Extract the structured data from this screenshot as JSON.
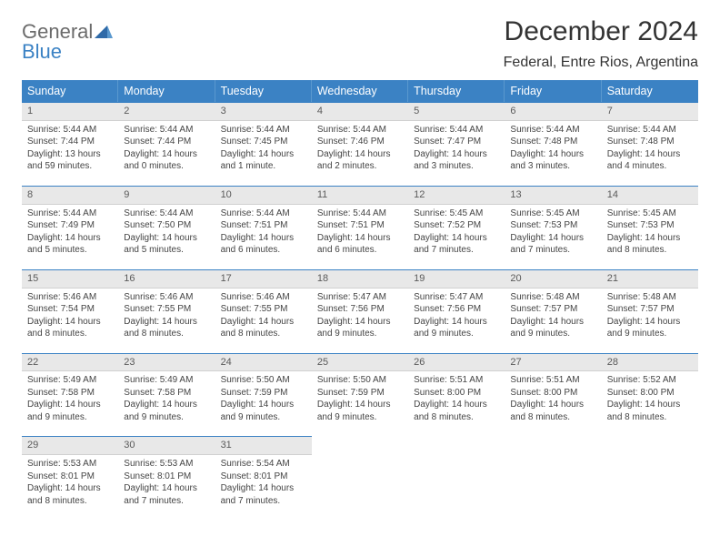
{
  "logo": {
    "general": "General",
    "blue": "Blue"
  },
  "title": "December 2024",
  "location": "Federal, Entre Rios, Argentina",
  "day_headers": [
    "Sunday",
    "Monday",
    "Tuesday",
    "Wednesday",
    "Thursday",
    "Friday",
    "Saturday"
  ],
  "header_bg": "#3b82c4",
  "header_border": "#5a98ce",
  "daynum_bg": "#e8e8e8",
  "daynum_border_top": "#3b82c4",
  "weeks": [
    [
      {
        "n": "1",
        "sunrise": "Sunrise: 5:44 AM",
        "sunset": "Sunset: 7:44 PM",
        "d1": "Daylight: 13 hours",
        "d2": "and 59 minutes."
      },
      {
        "n": "2",
        "sunrise": "Sunrise: 5:44 AM",
        "sunset": "Sunset: 7:44 PM",
        "d1": "Daylight: 14 hours",
        "d2": "and 0 minutes."
      },
      {
        "n": "3",
        "sunrise": "Sunrise: 5:44 AM",
        "sunset": "Sunset: 7:45 PM",
        "d1": "Daylight: 14 hours",
        "d2": "and 1 minute."
      },
      {
        "n": "4",
        "sunrise": "Sunrise: 5:44 AM",
        "sunset": "Sunset: 7:46 PM",
        "d1": "Daylight: 14 hours",
        "d2": "and 2 minutes."
      },
      {
        "n": "5",
        "sunrise": "Sunrise: 5:44 AM",
        "sunset": "Sunset: 7:47 PM",
        "d1": "Daylight: 14 hours",
        "d2": "and 3 minutes."
      },
      {
        "n": "6",
        "sunrise": "Sunrise: 5:44 AM",
        "sunset": "Sunset: 7:48 PM",
        "d1": "Daylight: 14 hours",
        "d2": "and 3 minutes."
      },
      {
        "n": "7",
        "sunrise": "Sunrise: 5:44 AM",
        "sunset": "Sunset: 7:48 PM",
        "d1": "Daylight: 14 hours",
        "d2": "and 4 minutes."
      }
    ],
    [
      {
        "n": "8",
        "sunrise": "Sunrise: 5:44 AM",
        "sunset": "Sunset: 7:49 PM",
        "d1": "Daylight: 14 hours",
        "d2": "and 5 minutes."
      },
      {
        "n": "9",
        "sunrise": "Sunrise: 5:44 AM",
        "sunset": "Sunset: 7:50 PM",
        "d1": "Daylight: 14 hours",
        "d2": "and 5 minutes."
      },
      {
        "n": "10",
        "sunrise": "Sunrise: 5:44 AM",
        "sunset": "Sunset: 7:51 PM",
        "d1": "Daylight: 14 hours",
        "d2": "and 6 minutes."
      },
      {
        "n": "11",
        "sunrise": "Sunrise: 5:44 AM",
        "sunset": "Sunset: 7:51 PM",
        "d1": "Daylight: 14 hours",
        "d2": "and 6 minutes."
      },
      {
        "n": "12",
        "sunrise": "Sunrise: 5:45 AM",
        "sunset": "Sunset: 7:52 PM",
        "d1": "Daylight: 14 hours",
        "d2": "and 7 minutes."
      },
      {
        "n": "13",
        "sunrise": "Sunrise: 5:45 AM",
        "sunset": "Sunset: 7:53 PM",
        "d1": "Daylight: 14 hours",
        "d2": "and 7 minutes."
      },
      {
        "n": "14",
        "sunrise": "Sunrise: 5:45 AM",
        "sunset": "Sunset: 7:53 PM",
        "d1": "Daylight: 14 hours",
        "d2": "and 8 minutes."
      }
    ],
    [
      {
        "n": "15",
        "sunrise": "Sunrise: 5:46 AM",
        "sunset": "Sunset: 7:54 PM",
        "d1": "Daylight: 14 hours",
        "d2": "and 8 minutes."
      },
      {
        "n": "16",
        "sunrise": "Sunrise: 5:46 AM",
        "sunset": "Sunset: 7:55 PM",
        "d1": "Daylight: 14 hours",
        "d2": "and 8 minutes."
      },
      {
        "n": "17",
        "sunrise": "Sunrise: 5:46 AM",
        "sunset": "Sunset: 7:55 PM",
        "d1": "Daylight: 14 hours",
        "d2": "and 8 minutes."
      },
      {
        "n": "18",
        "sunrise": "Sunrise: 5:47 AM",
        "sunset": "Sunset: 7:56 PM",
        "d1": "Daylight: 14 hours",
        "d2": "and 9 minutes."
      },
      {
        "n": "19",
        "sunrise": "Sunrise: 5:47 AM",
        "sunset": "Sunset: 7:56 PM",
        "d1": "Daylight: 14 hours",
        "d2": "and 9 minutes."
      },
      {
        "n": "20",
        "sunrise": "Sunrise: 5:48 AM",
        "sunset": "Sunset: 7:57 PM",
        "d1": "Daylight: 14 hours",
        "d2": "and 9 minutes."
      },
      {
        "n": "21",
        "sunrise": "Sunrise: 5:48 AM",
        "sunset": "Sunset: 7:57 PM",
        "d1": "Daylight: 14 hours",
        "d2": "and 9 minutes."
      }
    ],
    [
      {
        "n": "22",
        "sunrise": "Sunrise: 5:49 AM",
        "sunset": "Sunset: 7:58 PM",
        "d1": "Daylight: 14 hours",
        "d2": "and 9 minutes."
      },
      {
        "n": "23",
        "sunrise": "Sunrise: 5:49 AM",
        "sunset": "Sunset: 7:58 PM",
        "d1": "Daylight: 14 hours",
        "d2": "and 9 minutes."
      },
      {
        "n": "24",
        "sunrise": "Sunrise: 5:50 AM",
        "sunset": "Sunset: 7:59 PM",
        "d1": "Daylight: 14 hours",
        "d2": "and 9 minutes."
      },
      {
        "n": "25",
        "sunrise": "Sunrise: 5:50 AM",
        "sunset": "Sunset: 7:59 PM",
        "d1": "Daylight: 14 hours",
        "d2": "and 9 minutes."
      },
      {
        "n": "26",
        "sunrise": "Sunrise: 5:51 AM",
        "sunset": "Sunset: 8:00 PM",
        "d1": "Daylight: 14 hours",
        "d2": "and 8 minutes."
      },
      {
        "n": "27",
        "sunrise": "Sunrise: 5:51 AM",
        "sunset": "Sunset: 8:00 PM",
        "d1": "Daylight: 14 hours",
        "d2": "and 8 minutes."
      },
      {
        "n": "28",
        "sunrise": "Sunrise: 5:52 AM",
        "sunset": "Sunset: 8:00 PM",
        "d1": "Daylight: 14 hours",
        "d2": "and 8 minutes."
      }
    ],
    [
      {
        "n": "29",
        "sunrise": "Sunrise: 5:53 AM",
        "sunset": "Sunset: 8:01 PM",
        "d1": "Daylight: 14 hours",
        "d2": "and 8 minutes."
      },
      {
        "n": "30",
        "sunrise": "Sunrise: 5:53 AM",
        "sunset": "Sunset: 8:01 PM",
        "d1": "Daylight: 14 hours",
        "d2": "and 7 minutes."
      },
      {
        "n": "31",
        "sunrise": "Sunrise: 5:54 AM",
        "sunset": "Sunset: 8:01 PM",
        "d1": "Daylight: 14 hours",
        "d2": "and 7 minutes."
      },
      null,
      null,
      null,
      null
    ]
  ]
}
